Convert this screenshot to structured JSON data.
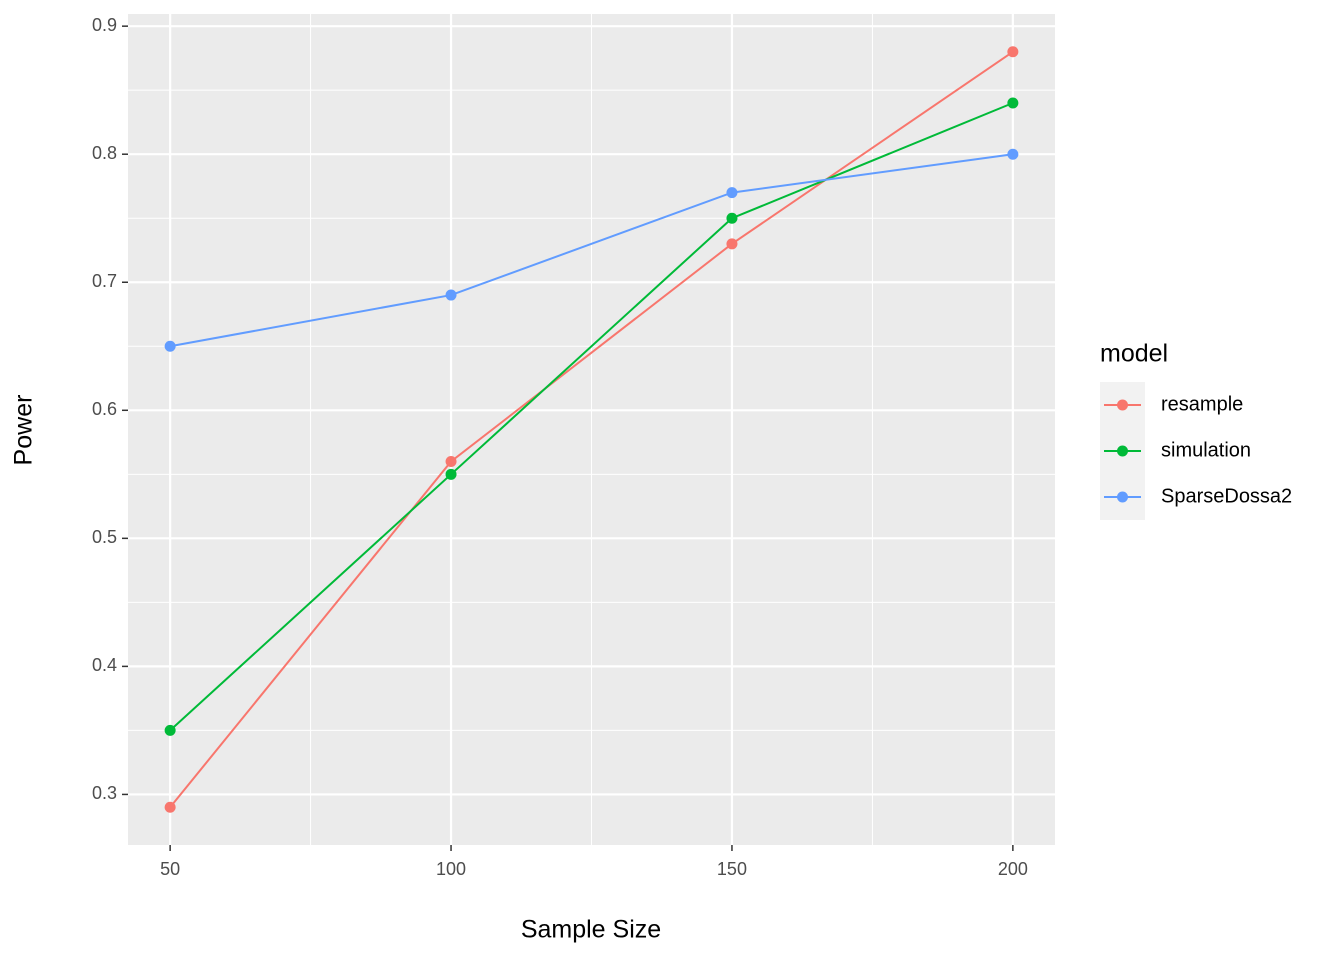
{
  "chart_data": {
    "type": "line",
    "x_label": "Sample Size",
    "y_label": "Power",
    "legend_title": "model",
    "x": [
      50,
      100,
      150,
      200
    ],
    "series": [
      {
        "name": "resample",
        "color": "#F8766D",
        "values": [
          0.29,
          0.56,
          0.73,
          0.88
        ]
      },
      {
        "name": "simulation",
        "color": "#00BA38",
        "values": [
          0.35,
          0.55,
          0.75,
          0.84
        ]
      },
      {
        "name": "SparseDossa2",
        "color": "#619CFF",
        "values": [
          0.65,
          0.69,
          0.77,
          0.8
        ]
      }
    ],
    "xlim": [
      42.5,
      207.5
    ],
    "xticks": [
      50,
      100,
      150,
      200
    ],
    "ylim": [
      0.2605,
      0.9095
    ],
    "yticks": [
      0.3,
      0.4,
      0.5,
      0.6,
      0.7,
      0.8,
      0.9
    ],
    "grid": true,
    "legend_position": "right"
  }
}
